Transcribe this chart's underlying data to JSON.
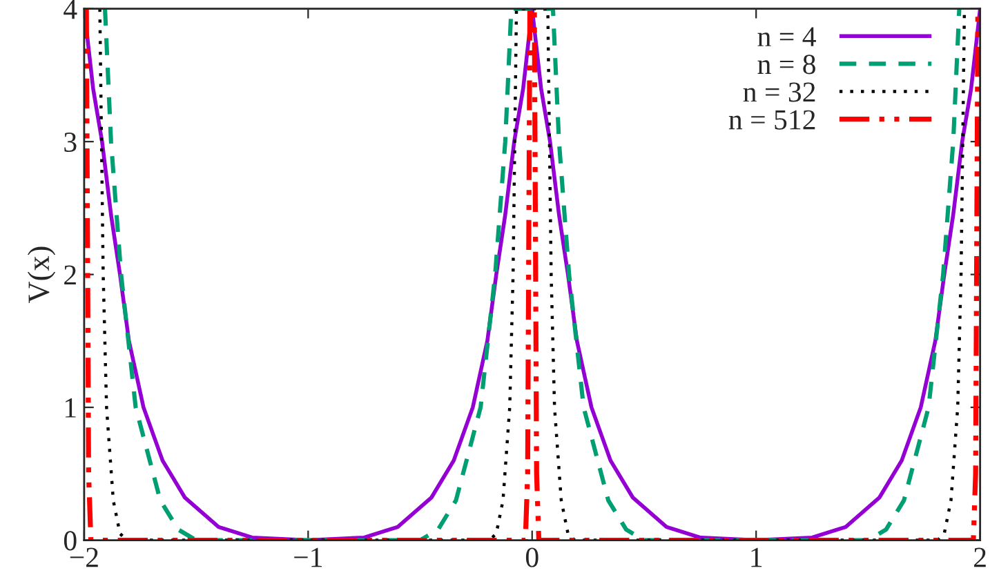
{
  "chart_data": {
    "type": "line",
    "ylabel": "V(x)",
    "xlim": [
      -2,
      2
    ],
    "ylim": [
      0,
      4
    ],
    "xticks": [
      {
        "value": -2,
        "label": "−2"
      },
      {
        "value": -1,
        "label": "−1"
      },
      0,
      1,
      2
    ],
    "yticks": [
      0,
      1,
      2,
      3,
      4
    ],
    "grid": false,
    "legend": "top right",
    "series": [
      {
        "name": "n = 4",
        "color": "#9400d3",
        "line_style": "solid",
        "x": [
          -2,
          -1.96,
          -1.92,
          -1.88,
          -1.84,
          -1.8,
          -1.735,
          -1.65,
          -1.55,
          -1.4,
          -1.25,
          -1,
          -0.75,
          -0.6,
          -0.45,
          -0.35,
          -0.265,
          -0.2,
          -0.16,
          -0.12,
          -0.08,
          -0.04,
          0,
          0.04,
          0.08,
          0.12,
          0.16,
          0.2,
          0.265,
          0.35,
          0.45,
          0.6,
          0.75,
          1,
          1.25,
          1.4,
          1.55,
          1.65,
          1.735,
          1.8,
          1.84,
          1.88,
          1.92,
          1.96,
          2
        ],
        "values": [
          4,
          3.4,
          3.0,
          2.45,
          2.0,
          1.5,
          1.0,
          0.6,
          0.32,
          0.1,
          0.02,
          0,
          0.02,
          0.1,
          0.32,
          0.6,
          1.0,
          1.5,
          2.0,
          2.45,
          3.0,
          3.4,
          4,
          3.4,
          3.0,
          2.45,
          2.0,
          1.5,
          1.0,
          0.6,
          0.32,
          0.1,
          0.02,
          0,
          0.02,
          0.1,
          0.32,
          0.6,
          1.0,
          1.5,
          2.0,
          2.45,
          3.0,
          3.4,
          4
        ]
      },
      {
        "name": "n = 8",
        "color": "#009e73",
        "line_style": "dashed",
        "x": [
          -1.907,
          -1.88,
          -1.835,
          -1.77,
          -1.66,
          -1.58,
          -1.5,
          -0.5,
          -0.42,
          -0.34,
          -0.23,
          -0.165,
          -0.12,
          -0.093,
          0.093,
          0.12,
          0.165,
          0.23,
          0.34,
          0.42,
          0.5,
          1.5,
          1.58,
          1.66,
          1.77,
          1.835,
          1.88,
          1.907
        ],
        "values": [
          4,
          3,
          2,
          1,
          0.3,
          0.08,
          0,
          0,
          0.08,
          0.3,
          1,
          2,
          3,
          4,
          4,
          3,
          2,
          1,
          0.3,
          0.08,
          0,
          0,
          0.08,
          0.3,
          1,
          2,
          3,
          4
        ]
      },
      {
        "name": "n = 32",
        "color": "#000000",
        "line_style": "dotted",
        "x": [
          -1.93,
          -1.915,
          -1.9,
          -1.87,
          -1.84,
          -1.81,
          -0.19,
          -0.16,
          -0.13,
          -0.1,
          -0.085,
          -0.07,
          0.07,
          0.085,
          0.1,
          0.13,
          0.16,
          0.19,
          1.81,
          1.84,
          1.87,
          1.9,
          1.915,
          1.93
        ],
        "values": [
          4,
          2,
          1,
          0.3,
          0.05,
          0,
          0,
          0.05,
          0.3,
          1,
          2,
          4,
          4,
          2,
          1,
          0.3,
          0.05,
          0,
          0,
          0.05,
          0.3,
          1,
          2,
          4
        ]
      },
      {
        "name": "n = 512",
        "color": "#ff0000",
        "line_style": "dashdot",
        "x": [
          -1.99,
          -1.98,
          -1.97,
          -0.03,
          -0.02,
          -0.01,
          0.01,
          0.02,
          0.03,
          1.97,
          1.98,
          1.99
        ],
        "values": [
          4,
          0.5,
          0,
          0,
          0.5,
          4,
          4,
          0.5,
          0,
          0,
          0.5,
          4
        ]
      }
    ]
  }
}
